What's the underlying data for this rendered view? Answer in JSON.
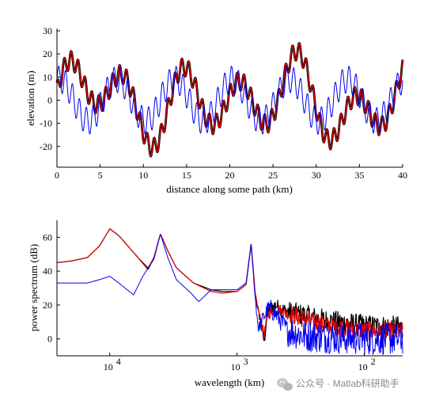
{
  "chart_data": [
    {
      "type": "line",
      "xlabel": "distance along some path (km)",
      "ylabel": "elevation (m)",
      "xlim": [
        0,
        40
      ],
      "ylim": [
        -29,
        31
      ],
      "xticks": [
        "0",
        "5",
        "10",
        "15",
        "20",
        "25",
        "30",
        "35",
        "40"
      ],
      "yticks": [
        "-20",
        "-10",
        "0",
        "10",
        "20",
        "30"
      ],
      "series": [
        {
          "color": "#000000",
          "model": {
            "components": [
              {
                "period_km": 6.67,
                "amp": 12.5,
                "phase": 0.47
              },
              {
                "period_km": 0.8,
                "amp": 4.0,
                "phase": 1.2
              },
              {
                "period_km": 12.0,
                "amp": 7.2,
                "phase": -0.43
              },
              {
                "period_km": 20.0,
                "amp": 4.0,
                "phase": 0.3
              }
            ]
          }
        },
        {
          "color": "#dd0000",
          "model": {
            "components": [
              {
                "period_km": 6.67,
                "amp": 12.5,
                "phase": 0.47
              },
              {
                "period_km": 0.8,
                "amp": 4.0,
                "phase": 1.2
              },
              {
                "period_km": 12.0,
                "amp": 7.2,
                "phase": -0.43
              },
              {
                "period_km": 20.0,
                "amp": 4.0,
                "phase": 0.3
              }
            ]
          }
        },
        {
          "color": "#0000ee",
          "model": {
            "components": [
              {
                "period_km": 6.67,
                "amp": 9.0,
                "phase": 1.3
              },
              {
                "period_km": 0.8,
                "amp": 5.8,
                "phase": 0.0
              }
            ]
          }
        }
      ]
    },
    {
      "type": "line",
      "xscale": "log",
      "xlabel": "wavelength (km)",
      "ylabel": "power spectrum (dB)",
      "x_wavelength_range_m": [
        26000,
        50
      ],
      "ylim": [
        -10,
        70
      ],
      "xtick_values_m": [
        10000,
        1000,
        100
      ],
      "xticks": [
        "10",
        "10",
        "10"
      ],
      "xtick_exponents": [
        "4",
        "3",
        "2"
      ],
      "yticks": [
        "0",
        "20",
        "40",
        "60"
      ],
      "series": [
        {
          "color": "#000000",
          "points": [
            [
              26000,
              45
            ],
            [
              20000,
              46
            ],
            [
              15000,
              48
            ],
            [
              12000,
              55
            ],
            [
              10000,
              65
            ],
            [
              8500,
              61
            ],
            [
              6000,
              48
            ],
            [
              5000,
              41
            ],
            [
              4500,
              48
            ],
            [
              4000,
              62
            ],
            [
              3500,
              52
            ],
            [
              3000,
              42
            ],
            [
              2200,
              33
            ],
            [
              1600,
              29
            ],
            [
              1300,
              28
            ],
            [
              1000,
              28
            ],
            [
              850,
              32
            ],
            [
              775,
              56
            ],
            [
              720,
              26
            ],
            [
              640,
              6
            ],
            [
              610,
              -2
            ],
            [
              580,
              16
            ],
            [
              500,
              20
            ],
            [
              400,
              16
            ],
            [
              300,
              14
            ],
            [
              200,
              11
            ],
            [
              100,
              8
            ],
            [
              50,
              7
            ]
          ]
        },
        {
          "color": "#dd0000",
          "points": [
            [
              26000,
              45
            ],
            [
              20000,
              46
            ],
            [
              15000,
              48
            ],
            [
              12000,
              55
            ],
            [
              10000,
              65
            ],
            [
              8500,
              61
            ],
            [
              6000,
              48
            ],
            [
              5000,
              42
            ],
            [
              4500,
              48
            ],
            [
              4000,
              62
            ],
            [
              3500,
              52
            ],
            [
              3000,
              42
            ],
            [
              2200,
              33
            ],
            [
              1600,
              28
            ],
            [
              1300,
              27
            ],
            [
              1000,
              28
            ],
            [
              850,
              32
            ],
            [
              775,
              56
            ],
            [
              720,
              26
            ],
            [
              640,
              8
            ],
            [
              610,
              3
            ],
            [
              580,
              14
            ],
            [
              500,
              18
            ],
            [
              400,
              15
            ],
            [
              300,
              12
            ],
            [
              200,
              8
            ],
            [
              100,
              5
            ],
            [
              50,
              4
            ]
          ]
        },
        {
          "color": "#0000ee",
          "points": [
            [
              26000,
              33
            ],
            [
              15000,
              33
            ],
            [
              12000,
              35
            ],
            [
              10000,
              37
            ],
            [
              8500,
              33
            ],
            [
              6500,
              26
            ],
            [
              5500,
              37
            ],
            [
              4500,
              47
            ],
            [
              4000,
              62
            ],
            [
              3500,
              48
            ],
            [
              3000,
              35
            ],
            [
              2300,
              27
            ],
            [
              2000,
              22
            ],
            [
              1600,
              29
            ],
            [
              1000,
              29
            ],
            [
              850,
              33
            ],
            [
              775,
              56
            ],
            [
              720,
              24
            ],
            [
              680,
              6
            ],
            [
              620,
              13
            ],
            [
              560,
              18
            ],
            [
              500,
              15
            ],
            [
              400,
              5
            ],
            [
              300,
              2
            ],
            [
              200,
              1
            ],
            [
              100,
              0
            ],
            [
              50,
              0
            ]
          ]
        }
      ]
    }
  ],
  "watermark": "公众号 · Matlab科研助手"
}
